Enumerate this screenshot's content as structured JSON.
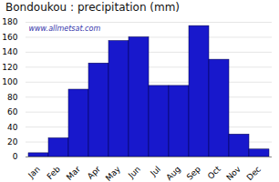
{
  "chart_data": {
    "type": "bar",
    "title": "Bondoukou : precipitation (mm)",
    "categories": [
      "Jan",
      "Feb",
      "Mar",
      "Apr",
      "May",
      "Jun",
      "Jul",
      "Aug",
      "Sep",
      "Oct",
      "Nov",
      "Dec"
    ],
    "values": [
      5,
      25,
      90,
      125,
      155,
      160,
      95,
      95,
      175,
      130,
      30,
      10
    ],
    "color": "#1818cc",
    "ylim": [
      0,
      180
    ],
    "yticks": [
      0,
      20,
      40,
      60,
      80,
      100,
      120,
      140,
      160,
      180
    ],
    "grid": true,
    "annotations": [
      "www.allmetsat.com"
    ]
  }
}
